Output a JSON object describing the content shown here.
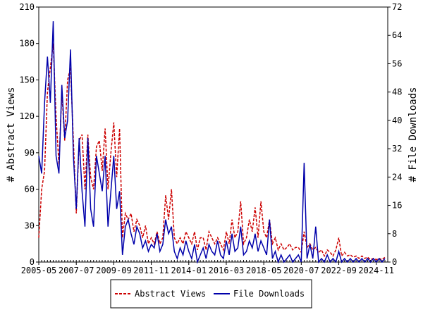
{
  "chart_data": {
    "type": "line",
    "y_label": "# Abstract Views",
    "y2_label": "# File Downloads",
    "x": [
      "2005-05",
      "2005-07",
      "2005-09",
      "2005-11",
      "2006-01",
      "2006-03",
      "2006-05",
      "2006-07",
      "2006-09",
      "2006-11",
      "2007-01",
      "2007-03",
      "2007-05",
      "2007-07",
      "2007-09",
      "2007-11",
      "2008-01",
      "2008-03",
      "2008-05",
      "2008-07",
      "2008-09",
      "2008-11",
      "2009-01",
      "2009-03",
      "2009-05",
      "2009-07",
      "2009-09",
      "2009-11",
      "2010-01",
      "2010-03",
      "2010-05",
      "2010-07",
      "2010-09",
      "2010-11",
      "2011-01",
      "2011-03",
      "2011-05",
      "2011-07",
      "2011-09",
      "2011-11",
      "2012-01",
      "2012-03",
      "2012-05",
      "2012-07",
      "2012-09",
      "2012-11",
      "2013-01",
      "2013-03",
      "2013-05",
      "2013-07",
      "2013-09",
      "2013-11",
      "2014-01",
      "2014-03",
      "2014-05",
      "2014-07",
      "2014-09",
      "2014-11",
      "2015-01",
      "2015-03",
      "2015-05",
      "2015-07",
      "2015-09",
      "2015-11",
      "2016-01",
      "2016-03",
      "2016-05",
      "2016-07",
      "2016-09",
      "2016-11",
      "2017-01",
      "2017-03",
      "2017-05",
      "2017-07",
      "2017-09",
      "2017-11",
      "2018-01",
      "2018-03",
      "2018-05",
      "2018-07",
      "2018-09",
      "2018-11",
      "2019-01",
      "2019-03",
      "2019-05",
      "2019-07",
      "2019-09",
      "2019-11",
      "2020-01",
      "2020-03",
      "2020-05",
      "2020-07",
      "2020-09",
      "2020-11",
      "2021-01",
      "2021-03",
      "2021-05",
      "2021-07",
      "2021-09",
      "2021-11",
      "2022-01",
      "2022-03",
      "2022-05",
      "2022-07",
      "2022-09",
      "2022-11",
      "2023-01",
      "2023-03",
      "2023-05",
      "2023-07",
      "2023-09",
      "2023-11",
      "2024-01",
      "2024-03",
      "2024-05",
      "2024-07",
      "2024-09",
      "2024-11",
      "2025-01",
      "2025-03",
      "2025-05"
    ],
    "xticks": [
      "2005-05",
      "2007-07",
      "2009-09",
      "2011-11",
      "2014-01",
      "2016-03",
      "2018-05",
      "2020-07",
      "2022-09",
      "2024-11"
    ],
    "ylim": [
      0,
      210
    ],
    "yticks": [
      0,
      30,
      60,
      90,
      120,
      150,
      180,
      210
    ],
    "y2lim": [
      0,
      72
    ],
    "y2ticks": [
      0,
      8,
      16,
      24,
      32,
      40,
      48,
      56,
      64,
      72
    ],
    "series": [
      {
        "name": "Abstract Views",
        "color": "#cc0000",
        "dash": true,
        "values": [
          20,
          60,
          75,
          140,
          160,
          180,
          120,
          80,
          140,
          100,
          150,
          160,
          100,
          40,
          100,
          105,
          60,
          105,
          70,
          60,
          95,
          100,
          75,
          110,
          60,
          90,
          115,
          70,
          110,
          20,
          40,
          35,
          40,
          25,
          35,
          30,
          20,
          30,
          15,
          20,
          15,
          25,
          15,
          20,
          55,
          35,
          60,
          20,
          15,
          20,
          15,
          25,
          20,
          15,
          25,
          10,
          20,
          20,
          10,
          25,
          20,
          15,
          20,
          15,
          10,
          25,
          15,
          35,
          20,
          25,
          50,
          15,
          20,
          35,
          25,
          45,
          20,
          50,
          25,
          20,
          35,
          15,
          20,
          10,
          15,
          10,
          12,
          15,
          10,
          12,
          12,
          8,
          25,
          12,
          15,
          10,
          12,
          8,
          10,
          5,
          10,
          8,
          5,
          10,
          20,
          5,
          8,
          5,
          6,
          4,
          5,
          3,
          5,
          3,
          4,
          2,
          3,
          2,
          3,
          2,
          4
        ]
      },
      {
        "name": "File Downloads",
        "color": "#0000aa",
        "axis": "y2",
        "values": [
          30,
          25,
          45,
          58,
          45,
          68,
          30,
          25,
          50,
          35,
          40,
          60,
          30,
          15,
          35,
          20,
          10,
          35,
          15,
          10,
          30,
          25,
          20,
          30,
          10,
          20,
          30,
          15,
          20,
          2,
          10,
          12,
          8,
          5,
          10,
          8,
          4,
          6,
          3,
          5,
          4,
          8,
          3,
          5,
          12,
          8,
          10,
          3,
          1,
          4,
          2,
          6,
          3,
          1,
          5,
          0,
          2,
          4,
          1,
          5,
          3,
          2,
          6,
          2,
          1,
          6,
          2,
          8,
          3,
          4,
          10,
          2,
          3,
          6,
          4,
          8,
          3,
          6,
          4,
          2,
          12,
          1,
          3,
          0,
          2,
          0,
          1,
          2,
          0,
          1,
          2,
          0,
          28,
          1,
          5,
          1,
          10,
          0,
          1,
          0,
          2,
          0,
          1,
          0,
          3,
          0,
          1,
          0,
          1,
          0,
          1,
          0,
          1,
          0,
          1,
          0,
          1,
          0,
          1,
          0,
          1
        ]
      }
    ]
  }
}
